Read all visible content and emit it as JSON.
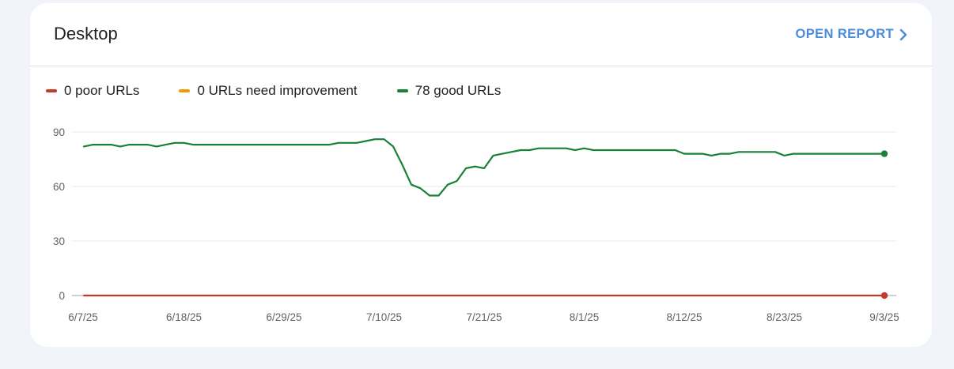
{
  "card": {
    "title": "Desktop",
    "open_report_label": "OPEN REPORT"
  },
  "legend": {
    "items": [
      {
        "label": "0 poor URLs",
        "color": "#c5392b"
      },
      {
        "label": "0 URLs need improvement",
        "color": "#f29900"
      },
      {
        "label": "78 good URLs",
        "color": "#188038"
      }
    ]
  },
  "icons": {
    "open_report": "chevron-right-icon"
  },
  "chart_data": {
    "type": "line",
    "ylim": [
      0,
      90
    ],
    "yticks": [
      "0",
      "30",
      "60",
      "90"
    ],
    "xticks": [
      "6/7/25",
      "6/18/25",
      "6/29/25",
      "7/10/25",
      "7/21/25",
      "8/1/25",
      "8/12/25",
      "8/23/25",
      "9/3/25"
    ],
    "series": [
      {
        "name": "0 poor URLs",
        "color": "#c5392b",
        "values": [
          0,
          0,
          0,
          0,
          0,
          0,
          0,
          0,
          0,
          0,
          0,
          0,
          0,
          0,
          0,
          0,
          0,
          0,
          0,
          0,
          0,
          0,
          0,
          0,
          0,
          0,
          0,
          0,
          0,
          0,
          0,
          0,
          0,
          0,
          0,
          0,
          0,
          0,
          0,
          0,
          0,
          0,
          0,
          0,
          0,
          0,
          0,
          0,
          0,
          0,
          0,
          0,
          0,
          0,
          0,
          0,
          0,
          0,
          0,
          0,
          0,
          0,
          0,
          0,
          0,
          0,
          0,
          0,
          0,
          0,
          0,
          0,
          0,
          0,
          0,
          0,
          0,
          0,
          0,
          0,
          0,
          0,
          0,
          0,
          0,
          0,
          0,
          0,
          0
        ]
      },
      {
        "name": "78 good URLs",
        "color": "#188038",
        "values": [
          82,
          83,
          83,
          83,
          82,
          83,
          83,
          83,
          82,
          83,
          84,
          84,
          83,
          83,
          83,
          83,
          83,
          83,
          83,
          83,
          83,
          83,
          83,
          83,
          83,
          83,
          83,
          83,
          84,
          84,
          84,
          85,
          86,
          86,
          82,
          72,
          61,
          59,
          55,
          55,
          61,
          63,
          70,
          71,
          70,
          77,
          78,
          79,
          80,
          80,
          81,
          81,
          81,
          81,
          80,
          81,
          80,
          80,
          80,
          80,
          80,
          80,
          80,
          80,
          80,
          80,
          78,
          78,
          78,
          77,
          78,
          78,
          79,
          79,
          79,
          79,
          79,
          77,
          78,
          78,
          78,
          78,
          78,
          78,
          78,
          78,
          78,
          78,
          78
        ]
      }
    ]
  }
}
